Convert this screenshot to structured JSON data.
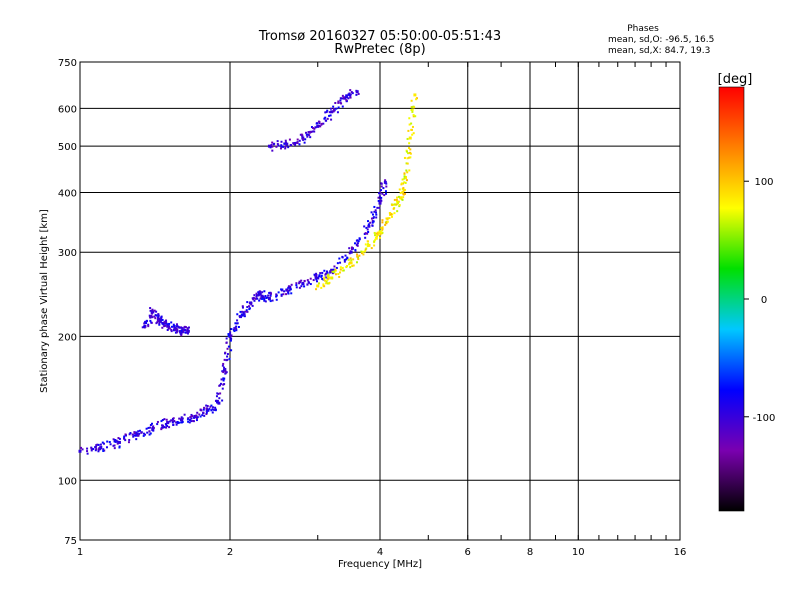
{
  "chart_data": {
    "type": "scatter",
    "title": "Tromsø 20160327 05:50:00-05:51:43",
    "subtitle": "RwPretec (8p)",
    "xlabel": "Frequency [MHz]",
    "ylabel": "Stationary phase Virtual Height [km]",
    "x_scale": "log",
    "y_scale": "log",
    "xlim": [
      1,
      16
    ],
    "ylim": [
      75,
      750
    ],
    "x_ticks": [
      1,
      2,
      4,
      6,
      8,
      10,
      16
    ],
    "y_ticks": [
      75,
      100,
      200,
      300,
      400,
      500,
      600,
      750
    ],
    "grid": true,
    "stats": {
      "header": "Phases",
      "line_o": "mean, sd,O:  -96.5, 16.5",
      "line_x": "mean, sd,X:  84.7, 19.3"
    },
    "colorbar": {
      "label": "[deg]",
      "range": [
        -180,
        180
      ],
      "ticks": [
        100,
        0,
        -100
      ],
      "colormap": [
        "#000000",
        "#7a00b0",
        "#0000ff",
        "#00c8ff",
        "#00e000",
        "#ffff00",
        "#ff8000",
        "#ff0000"
      ]
    },
    "series": [
      {
        "description": "O-mode F-layer trace, steep lower branch",
        "phase_mean": -96.5,
        "x": [
          1.0,
          1.1,
          1.2,
          1.3,
          1.4,
          1.5,
          1.6,
          1.7,
          1.8,
          1.9,
          1.95,
          2.0,
          2.1,
          2.2,
          2.3,
          2.4,
          2.6,
          2.8,
          3.0,
          3.2,
          3.5,
          3.8,
          4.0,
          4.1
        ],
        "y": [
          115,
          117,
          120,
          125,
          128,
          132,
          134,
          136,
          140,
          145,
          170,
          200,
          220,
          235,
          245,
          240,
          250,
          258,
          265,
          275,
          300,
          340,
          380,
          420
        ]
      },
      {
        "description": "O-mode upper trace near 1.4–1.6 MHz",
        "phase_mean": -100,
        "x": [
          1.35,
          1.4,
          1.45,
          1.5,
          1.55,
          1.6,
          1.65
        ],
        "y": [
          210,
          225,
          215,
          210,
          208,
          205,
          205
        ]
      },
      {
        "description": "O-mode high-altitude trace",
        "phase_mean": -100,
        "x": [
          2.4,
          2.6,
          2.8,
          3.0,
          3.2,
          3.4,
          3.6
        ],
        "y": [
          500,
          505,
          520,
          550,
          590,
          630,
          650
        ]
      },
      {
        "description": "X-mode trace (yellow/orange)",
        "phase_mean": 84.7,
        "x": [
          3.0,
          3.2,
          3.5,
          3.8,
          4.0,
          4.2,
          4.4,
          4.5,
          4.6,
          4.7
        ],
        "y": [
          255,
          265,
          285,
          310,
          330,
          360,
          390,
          430,
          520,
          640
        ]
      }
    ]
  }
}
